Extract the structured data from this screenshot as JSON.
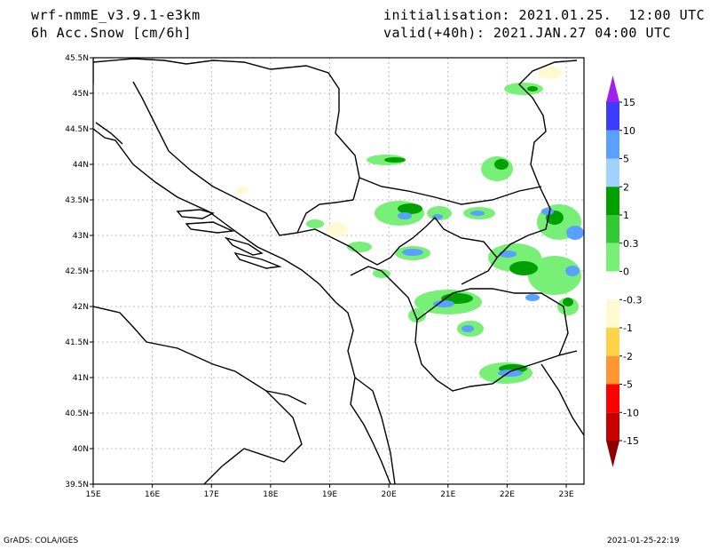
{
  "header": {
    "model": "wrf-nmmE_v3.9.1-e3km",
    "field": "6h Acc.Snow [cm/6h]",
    "init": "initialisation: 2021.01.25.  12:00 UTC",
    "valid": "valid(+40h): 2021.JAN.27 04:00 UTC"
  },
  "footer": {
    "left": "GrADS: COLA/IGES",
    "right": "2021-01-25-22:19"
  },
  "axes": {
    "lon_ticks": [
      "15E",
      "16E",
      "17E",
      "18E",
      "19E",
      "20E",
      "21E",
      "22E",
      "23E"
    ],
    "lat_ticks": [
      "39.5N",
      "40N",
      "40.5N",
      "41N",
      "41.5N",
      "42N",
      "42.5N",
      "43N",
      "43.5N",
      "44N",
      "44.5N",
      "45N",
      "45.5N"
    ],
    "lon_range": [
      15,
      23.3
    ],
    "lat_range": [
      39.5,
      45.5
    ]
  },
  "colorbar": {
    "labels": [
      "15",
      "10",
      "5",
      "2",
      "1",
      "0.3",
      "0",
      "-0.3",
      "-1",
      "-2",
      "-5",
      "-10",
      "-15"
    ],
    "colors": [
      "#a020f0",
      "#3c3cff",
      "#5aa0ff",
      "#a0d2ff",
      "#00a000",
      "#34c834",
      "#78f078",
      "#ffffff",
      "#fffad2",
      "#ffd24a",
      "#ff9632",
      "#ff0000",
      "#c80000",
      "#8c0000"
    ]
  }
}
